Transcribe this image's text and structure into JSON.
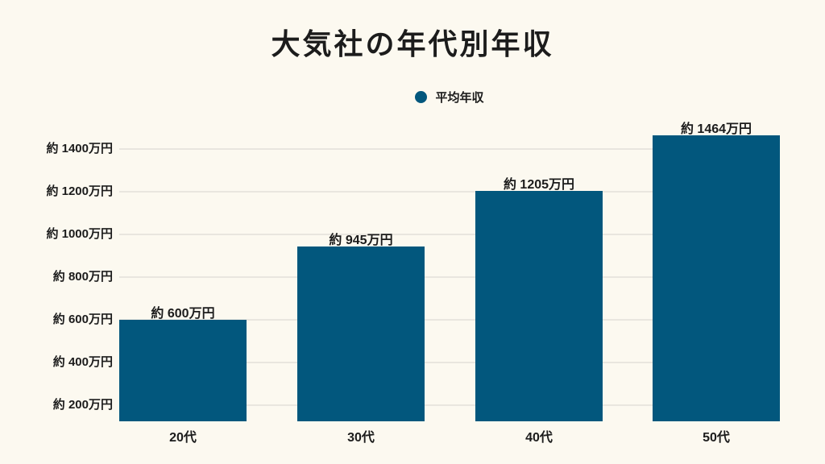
{
  "page": {
    "background_color": "#FCF9F0",
    "text_color": "#1C1C1C",
    "gridline_color": "#E9E6DF"
  },
  "chart_data": {
    "type": "bar",
    "title": "大気社の年代別年収",
    "legend": {
      "label": "平均年収",
      "marker_color": "#02577D",
      "position": "top-center"
    },
    "categories": [
      "20代",
      "30代",
      "40代",
      "50代"
    ],
    "values": [
      600,
      945,
      1205,
      1464
    ],
    "bar_labels": [
      "約 600万円",
      "約 945万円",
      "約 1205万円",
      "約 1464万円"
    ],
    "bar_color": "#02577D",
    "unit": "万円",
    "xlabel": "",
    "ylabel": "",
    "grid": true,
    "y_ticks": [
      {
        "label": "約 1400万円",
        "value": 1400
      },
      {
        "label": "約 1200万円",
        "value": 1200
      },
      {
        "label": "約 1000万円",
        "value": 1000
      },
      {
        "label": "約 800万円",
        "value": 800
      },
      {
        "label": "約 600万円",
        "value": 600
      },
      {
        "label": "約 400万円",
        "value": 400
      },
      {
        "label": "約 200万円",
        "value": 200
      }
    ],
    "y_tick_range": [
      200,
      1400
    ]
  }
}
